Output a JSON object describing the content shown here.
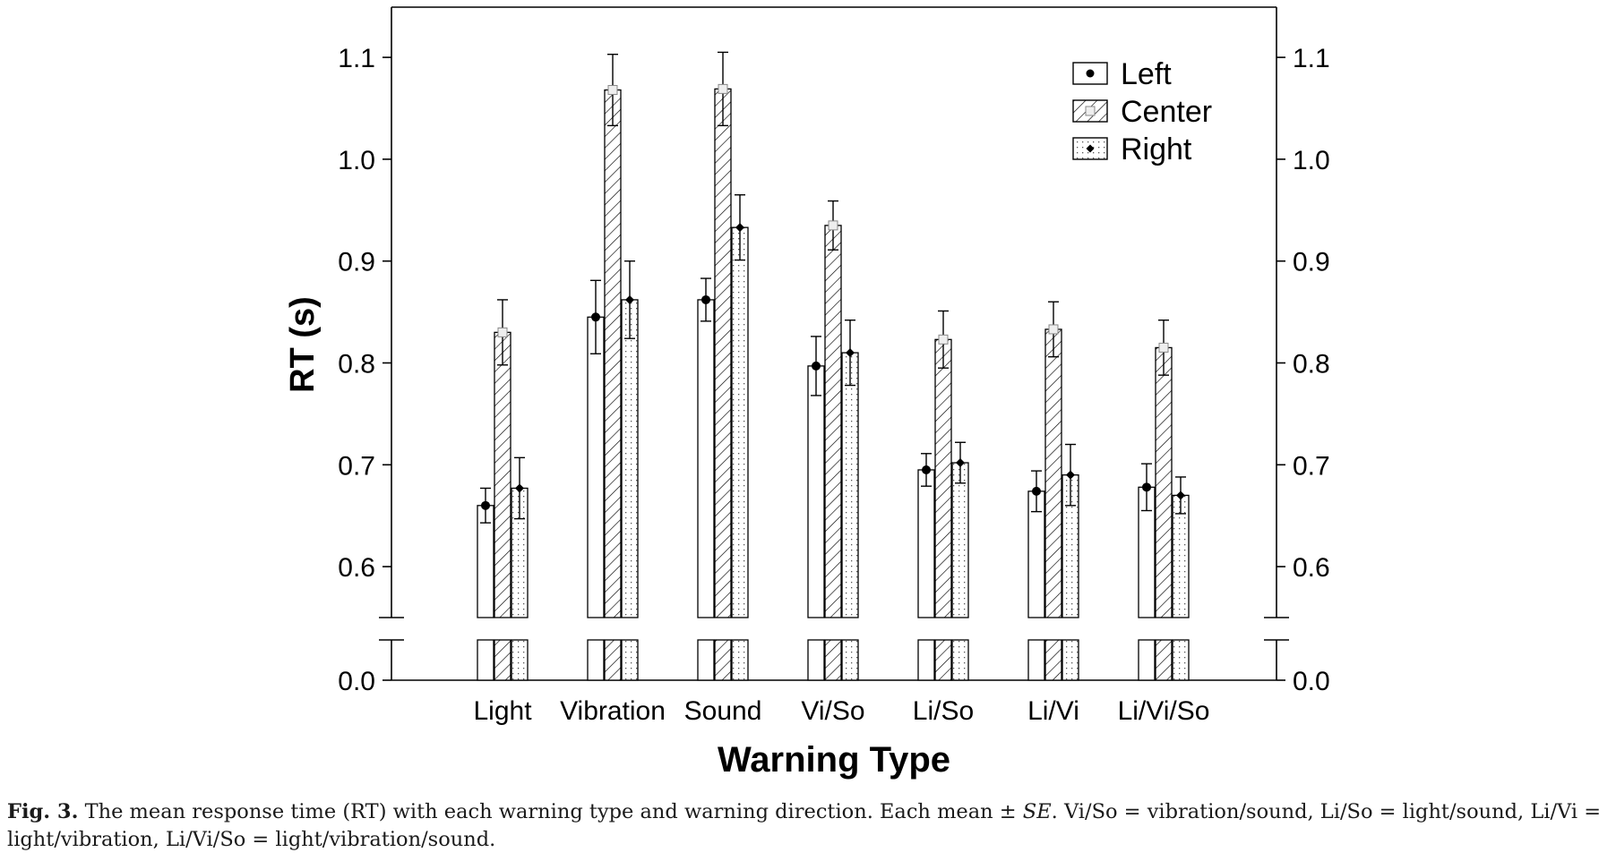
{
  "chart_data": {
    "type": "bar",
    "xlabel": "Warning Type",
    "ylabel": "RT (s)",
    "categories": [
      "Light",
      "Vibration",
      "Sound",
      "Vi/So",
      "Li/So",
      "Li/Vi",
      "Li/Vi/So"
    ],
    "series": [
      {
        "name": "Left",
        "values": [
          0.66,
          0.845,
          0.862,
          0.797,
          0.695,
          0.674,
          0.678
        ],
        "se": [
          0.017,
          0.036,
          0.021,
          0.029,
          0.016,
          0.02,
          0.023
        ]
      },
      {
        "name": "Center",
        "values": [
          0.83,
          1.068,
          1.069,
          0.935,
          0.823,
          0.833,
          0.815
        ],
        "se": [
          0.032,
          0.035,
          0.036,
          0.024,
          0.028,
          0.027,
          0.027
        ]
      },
      {
        "name": "Right",
        "values": [
          0.677,
          0.862,
          0.933,
          0.81,
          0.702,
          0.69,
          0.67
        ],
        "se": [
          0.03,
          0.038,
          0.032,
          0.032,
          0.02,
          0.03,
          0.018
        ]
      }
    ],
    "y_ticks": [
      "0.0",
      "0.6",
      "0.7",
      "0.8",
      "0.9",
      "1.0",
      "1.1"
    ],
    "ylim": [
      0.55,
      1.15
    ],
    "axis_break": [
      0.0,
      0.55
    ],
    "legend_position": "top-right",
    "grid": false,
    "right_axis_mirrored": true
  },
  "caption": {
    "label": "Fig. 3.",
    "text_before_se": " The mean response time (RT) with each warning type and warning direction. Each mean ± ",
    "se": "SE",
    "text_after_se": ". Vi/So = vibration/sound, Li/So = light/sound, Li/Vi = light/vibration, Li/Vi/So = light/vibration/sound."
  }
}
